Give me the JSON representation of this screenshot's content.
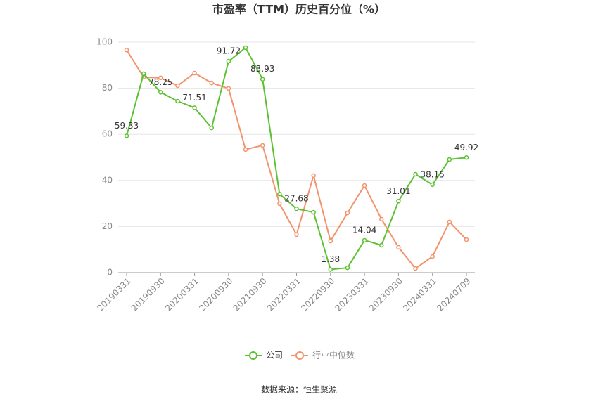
{
  "chart_data": {
    "type": "line",
    "title": "市盈率（TTM）历史百分位（%）",
    "source": "数据来源：恒生聚源",
    "categories": [
      "20190331",
      null,
      "20190930",
      null,
      "20200331",
      null,
      "20200930",
      null,
      "20210930",
      null,
      "20220331",
      null,
      "20220930",
      null,
      "20230331",
      null,
      "20230930",
      null,
      "20240331",
      null,
      "20240709"
    ],
    "series": [
      {
        "name": "公司",
        "color": "#5cc232",
        "values": [
          59.33,
          86.3,
          78.25,
          74.4,
          71.51,
          62.8,
          91.72,
          97.6,
          83.93,
          34.1,
          27.68,
          26.2,
          1.38,
          2.1,
          14.04,
          11.9,
          31.01,
          42.7,
          38.15,
          49.1,
          49.92
        ],
        "value_labels": [
          "59.33",
          null,
          "78.25",
          null,
          "71.51",
          null,
          "91.72",
          null,
          "83.93",
          null,
          "27.68",
          null,
          "1.38",
          null,
          "14.04",
          null,
          "31.01",
          null,
          "38.15",
          null,
          "49.92"
        ]
      },
      {
        "name": "行业中位数",
        "color": "#f2936c",
        "values": [
          96.6,
          84.8,
          84.5,
          81.1,
          86.6,
          82.3,
          79.9,
          53.4,
          55.2,
          29.9,
          16.5,
          42.1,
          13.7,
          25.9,
          37.8,
          23.2,
          11.0,
          1.8,
          7.0,
          22.0,
          14.3
        ]
      }
    ],
    "ylim": [
      0,
      100
    ],
    "yticks": [
      0,
      20,
      40,
      60,
      80,
      100
    ],
    "grid": true,
    "legend": "bottom"
  }
}
